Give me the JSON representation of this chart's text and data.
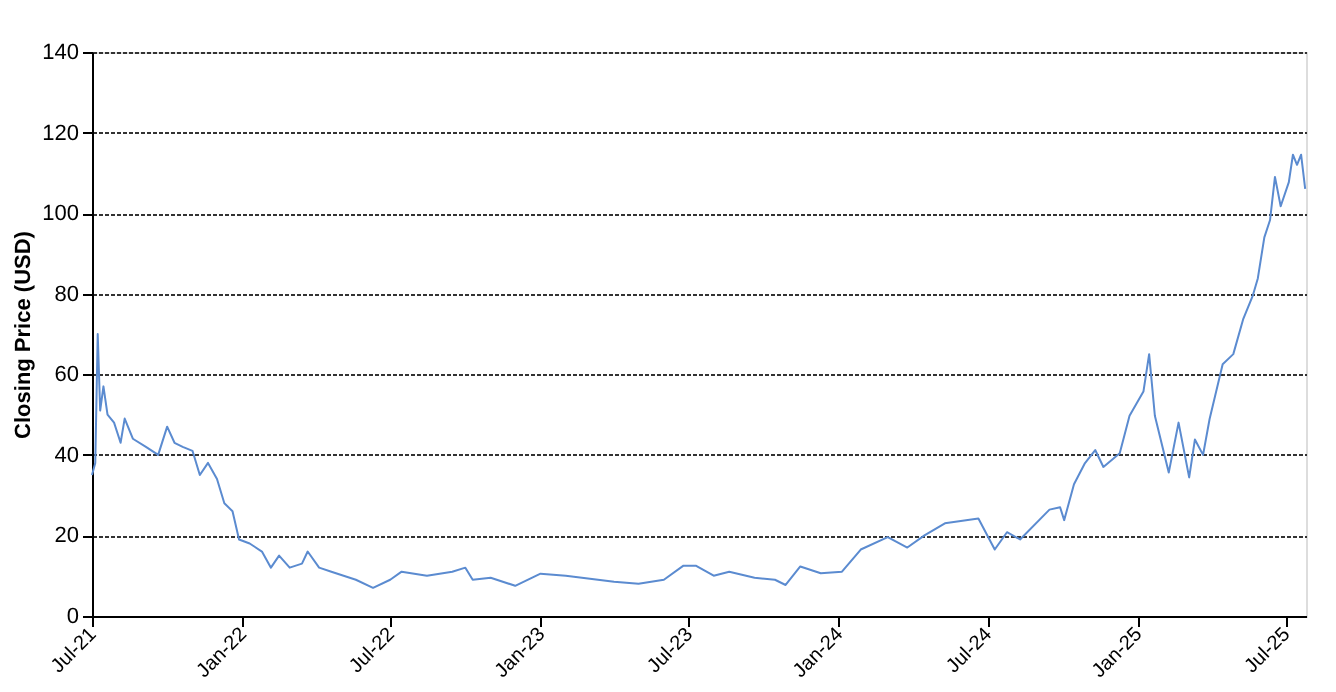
{
  "chart_data": {
    "type": "line",
    "ylabel": "Closing Price (USD)",
    "x": [
      "2021-07-01",
      "2021-07-05",
      "2021-07-08",
      "2021-07-11",
      "2021-07-15",
      "2021-07-20",
      "2021-07-28",
      "2021-08-05",
      "2021-08-10",
      "2021-08-20",
      "2021-09-05",
      "2021-09-20",
      "2021-10-01",
      "2021-10-10",
      "2021-10-20",
      "2021-11-01",
      "2021-11-10",
      "2021-11-20",
      "2021-12-01",
      "2021-12-10",
      "2021-12-20",
      "2021-12-28",
      "2022-01-10",
      "2022-01-25",
      "2022-02-05",
      "2022-02-15",
      "2022-02-28",
      "2022-03-15",
      "2022-03-22",
      "2022-04-05",
      "2022-04-20",
      "2022-05-05",
      "2022-05-20",
      "2022-06-10",
      "2022-07-01",
      "2022-07-15",
      "2022-08-15",
      "2022-09-15",
      "2022-10-01",
      "2022-10-10",
      "2022-11-01",
      "2022-12-01",
      "2023-01-01",
      "2023-02-01",
      "2023-04-01",
      "2023-05-01",
      "2023-06-01",
      "2023-06-25",
      "2023-07-10",
      "2023-08-01",
      "2023-08-20",
      "2023-09-20",
      "2023-10-15",
      "2023-10-28",
      "2023-11-15",
      "2023-12-10",
      "2024-01-05",
      "2024-01-28",
      "2024-03-01",
      "2024-03-25",
      "2024-04-15",
      "2024-05-10",
      "2024-06-20",
      "2024-07-10",
      "2024-07-25",
      "2024-08-10",
      "2024-09-15",
      "2024-09-28",
      "2024-10-03",
      "2024-10-15",
      "2024-10-28",
      "2024-11-10",
      "2024-11-20",
      "2024-12-10",
      "2024-12-22",
      "2025-01-08",
      "2025-01-15",
      "2025-01-22",
      "2025-02-08",
      "2025-02-20",
      "2025-03-05",
      "2025-03-12",
      "2025-03-22",
      "2025-03-30",
      "2025-04-15",
      "2025-04-28",
      "2025-05-10",
      "2025-05-22",
      "2025-05-28",
      "2025-06-05",
      "2025-06-12",
      "2025-06-18",
      "2025-06-25",
      "2025-07-05",
      "2025-07-10",
      "2025-07-15",
      "2025-07-20",
      "2025-07-25"
    ],
    "series": [
      {
        "color": "#5b8bd0",
        "values": [
          35,
          38,
          70,
          51,
          57,
          50,
          48,
          43,
          49,
          44,
          42,
          40,
          47,
          43,
          42,
          41,
          35,
          38,
          34,
          28,
          26,
          19,
          18,
          16,
          12,
          15,
          12,
          13,
          16,
          12,
          11,
          10,
          9,
          7,
          9,
          11,
          10,
          11,
          12,
          9,
          9.5,
          7.5,
          10.5,
          10,
          8.5,
          8,
          9,
          12.5,
          12.5,
          10,
          11,
          9.5,
          9,
          7.7,
          12.3,
          10.6,
          11,
          16.5,
          19.6,
          17,
          20,
          23,
          24.2,
          16.5,
          20.8,
          19,
          26.4,
          27,
          23.8,
          32.7,
          37.8,
          41.2,
          37,
          40.4,
          49.7,
          55.7,
          65,
          49.7,
          35.6,
          48,
          34.4,
          43.8,
          40,
          48.9,
          62.5,
          65,
          73.6,
          79.6,
          83.8,
          94,
          98.3,
          109,
          101.7,
          107.7,
          114.5,
          112,
          114.5,
          106
        ]
      }
    ],
    "xlim": [
      "2021-07-01",
      "2025-07-26"
    ],
    "xticks": [
      {
        "value": "2021-07-01",
        "label": "Jul-21"
      },
      {
        "value": "2022-01-01",
        "label": "Jan-22"
      },
      {
        "value": "2022-07-01",
        "label": "Jul-22"
      },
      {
        "value": "2023-01-01",
        "label": "Jan-23"
      },
      {
        "value": "2023-07-01",
        "label": "Jul-23"
      },
      {
        "value": "2024-01-01",
        "label": "Jan-24"
      },
      {
        "value": "2024-07-01",
        "label": "Jul-24"
      },
      {
        "value": "2025-01-01",
        "label": "Jan-25"
      },
      {
        "value": "2025-07-01",
        "label": "Jul-25"
      }
    ],
    "ylim": [
      0,
      140
    ],
    "yticks": [
      0,
      20,
      40,
      60,
      80,
      100,
      120,
      140
    ],
    "grid": "y",
    "legend": false,
    "marker": "none",
    "line_style": "solid"
  }
}
